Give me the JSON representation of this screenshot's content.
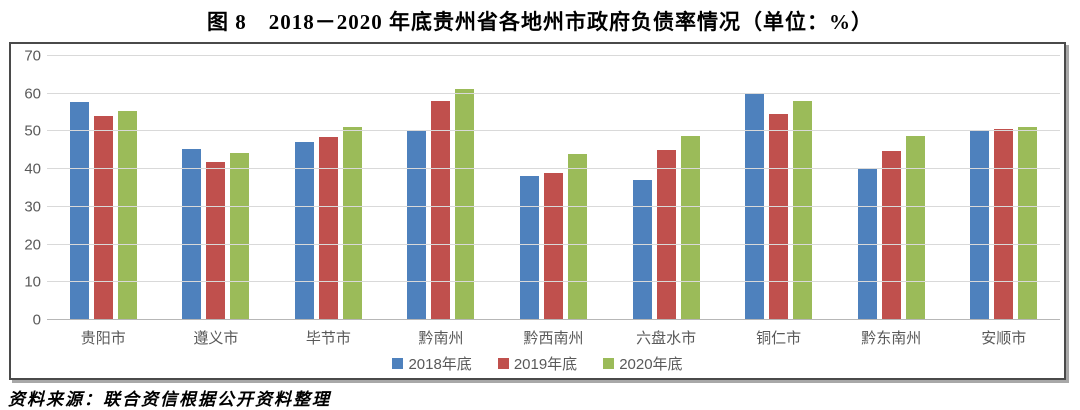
{
  "title": "图 8　2018－2020 年底贵州省各地州市政府负债率情况（单位：%）",
  "source_note": "资料来源：联合资信根据公开资料整理",
  "colors": {
    "axis_text": "#595959",
    "gridline": "#d9d9d9",
    "axis_line": "#b7b7b7",
    "frame_border": "#4a4a4a",
    "series_blue": "#4e81bd",
    "series_red": "#c0504d",
    "series_green": "#9bbb59"
  },
  "chart_data": {
    "type": "bar",
    "title": "图 8　2018－2020 年底贵州省各地州市政府负债率情况（单位：%）",
    "unit": "%",
    "xlabel": "",
    "ylabel": "",
    "ylim": [
      0,
      70
    ],
    "yticks": [
      0,
      10,
      20,
      30,
      40,
      50,
      60,
      70
    ],
    "grid": true,
    "legend_position": "bottom",
    "categories": [
      "贵阳市",
      "遵义市",
      "毕节市",
      "黔南州",
      "黔西南州",
      "六盘水市",
      "铜仁市",
      "黔东南州",
      "安顺市"
    ],
    "series": [
      {
        "name": "2018年底",
        "color": "#4e81bd",
        "values": [
          57.8,
          45.3,
          47.3,
          50.5,
          38.1,
          37.2,
          60.2,
          40.2,
          50.0
        ]
      },
      {
        "name": "2019年底",
        "color": "#c0504d",
        "values": [
          54.1,
          41.8,
          48.5,
          58.0,
          39.0,
          45.0,
          54.5,
          44.7,
          50.6
        ]
      },
      {
        "name": "2020年底",
        "color": "#9bbb59",
        "values": [
          55.5,
          44.4,
          51.2,
          61.2,
          44.0,
          48.9,
          58.0,
          48.9,
          51.2
        ]
      }
    ]
  }
}
